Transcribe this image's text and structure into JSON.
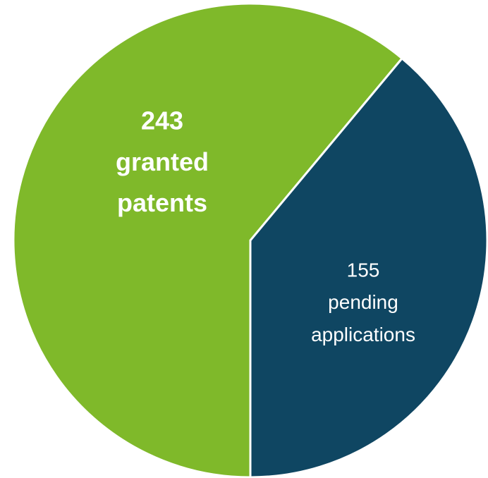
{
  "chart_data": {
    "type": "pie",
    "categories": [
      "granted patents",
      "pending applications"
    ],
    "values": [
      243,
      155
    ],
    "colors": [
      "#7fb92a",
      "#0f4662"
    ]
  }
}
